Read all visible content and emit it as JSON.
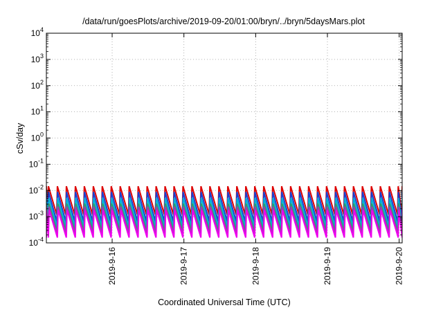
{
  "chart_data": {
    "type": "line",
    "title": "/data/run/goesPlots/archive/2019-09-20/01:00/bryn/../bryn/5daysMars.plot",
    "xlabel": "Coordinated Universal Time (UTC)",
    "ylabel": "cSv/day",
    "y_scale": "log",
    "ylim": [
      0.0001,
      10000
    ],
    "y_ticks": [
      {
        "value": 0.0001,
        "base": "10",
        "exp": "-4"
      },
      {
        "value": 0.001,
        "base": "10",
        "exp": "-3"
      },
      {
        "value": 0.01,
        "base": "10",
        "exp": "-2"
      },
      {
        "value": 0.1,
        "base": "10",
        "exp": "-1"
      },
      {
        "value": 1,
        "base": "10",
        "exp": "0"
      },
      {
        "value": 10,
        "base": "10",
        "exp": "1"
      },
      {
        "value": 100,
        "base": "10",
        "exp": "2"
      },
      {
        "value": 1000,
        "base": "10",
        "exp": "3"
      },
      {
        "value": 10000,
        "base": "10",
        "exp": "4"
      }
    ],
    "xlim": [
      "2019-09-15 02:00",
      "2019-09-20 01:00"
    ],
    "x_ticks": [
      {
        "value": "2019-09-16 00:00",
        "label": "2019-9-16"
      },
      {
        "value": "2019-09-17 00:00",
        "label": "2019-9-17"
      },
      {
        "value": "2019-09-18 00:00",
        "label": "2019-9-18"
      },
      {
        "value": "2019-09-19 00:00",
        "label": "2019-9-19"
      },
      {
        "value": "2019-09-20 00:00",
        "label": "2019-9-20"
      }
    ],
    "grid": true,
    "pattern": "sawtooth",
    "cycles_per_day": 8,
    "series": [
      {
        "color": "#dd0000",
        "peak": 0.0145,
        "trough": 0.0012
      },
      {
        "color": "#1a3fcf",
        "peak": 0.0088,
        "trough": 0.00065
      },
      {
        "color": "#00b0d8",
        "peak": 0.0052,
        "trough": 0.00042
      },
      {
        "color": "#2e9e6a",
        "peak": 0.0032,
        "trough": 0.00028
      },
      {
        "color": "#9a3fb0",
        "peak": 0.0024,
        "trough": 0.00021
      },
      {
        "color": "#ee00ee",
        "peak": 0.0018,
        "trough": 0.00016
      }
    ]
  }
}
